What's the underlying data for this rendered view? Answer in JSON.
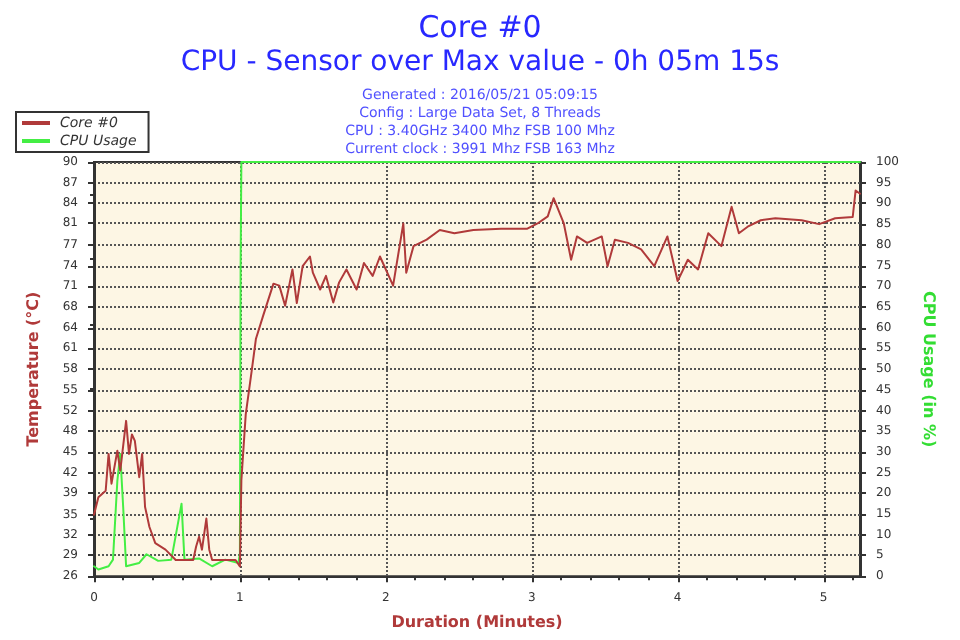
{
  "chart_data": {
    "type": "line",
    "title": "Core #0",
    "subtitle": "CPU - Sensor over Max value - 0h 05m 15s",
    "annotations": [
      "Generated : 2016/05/21 05:09:15",
      "Config : Large Data Set, 8 Threads",
      "CPU : 3.40GHz 3400 Mhz FSB 100 Mhz",
      "Current clock : 3991 Mhz FSB 163 Mhz"
    ],
    "xlabel": "Duration (Minutes)",
    "ylabel": "Temperature (°C)",
    "y2label": "CPU Usage (in %)",
    "xlim": [
      0,
      5.25
    ],
    "xticks": [
      0,
      1,
      2,
      3,
      4,
      5
    ],
    "ylim": [
      26,
      90
    ],
    "yticks": [
      26,
      {
        "value": 29.2,
        "label": "29"
      },
      {
        "value": 32.4,
        "label": "32"
      },
      {
        "value": 35.4,
        "label": "35"
      },
      {
        "value": 38.8,
        "label": "39"
      },
      42,
      {
        "value": 45.2,
        "label": "45"
      },
      {
        "value": 48.4,
        "label": "48"
      },
      {
        "value": 51.6,
        "label": "52"
      },
      {
        "value": 54.8,
        "label": "55"
      },
      58,
      {
        "value": 61.2,
        "label": "61"
      },
      {
        "value": 64.4,
        "label": "64"
      },
      {
        "value": 67.6,
        "label": "68"
      },
      {
        "value": 70.8,
        "label": "71"
      },
      74,
      {
        "value": 77.2,
        "label": "77"
      },
      {
        "value": 80.6,
        "label": "81"
      },
      {
        "value": 83.6,
        "label": "84"
      },
      {
        "value": 86.8,
        "label": "87"
      },
      90
    ],
    "y2lim": [
      0,
      100
    ],
    "y2ticks": [
      0,
      5,
      10,
      15,
      20,
      25,
      30,
      35,
      40,
      45,
      50,
      55,
      60,
      65,
      70,
      75,
      80,
      85,
      90,
      95,
      100
    ],
    "grid": true,
    "legend": "top left",
    "marker": "none",
    "line_style": "solid",
    "series": [
      {
        "name": "Core #0",
        "color": "#b03a3a",
        "x": [
          0,
          0.03,
          0.08,
          0.1,
          0.12,
          0.16,
          0.18,
          0.22,
          0.24,
          0.26,
          0.28,
          0.31,
          0.33,
          0.35,
          0.38,
          0.42,
          0.49,
          0.56,
          0.68,
          0.7,
          0.72,
          0.74,
          0.77,
          0.79,
          0.81,
          0.97,
          1.0,
          1.01,
          1.04,
          1.08,
          1.11,
          1.16,
          1.23,
          1.27,
          1.31,
          1.36,
          1.39,
          1.43,
          1.48,
          1.5,
          1.55,
          1.59,
          1.64,
          1.68,
          1.73,
          1.8,
          1.85,
          1.91,
          1.96,
          2.05,
          2.12,
          2.14,
          2.19,
          2.28,
          2.37,
          2.47,
          2.6,
          2.79,
          2.97,
          3.04,
          3.11,
          3.15,
          3.22,
          3.27,
          3.31,
          3.38,
          3.48,
          3.52,
          3.57,
          3.66,
          3.75,
          3.84,
          3.93,
          4.0,
          4.07,
          4.14,
          4.21,
          4.3,
          4.37,
          4.42,
          4.48,
          4.57,
          4.67,
          4.85,
          4.97,
          5.08,
          5.2,
          5.22,
          5.25
        ],
        "values": [
          35.5,
          38.2,
          39.2,
          44.9,
          40.3,
          45.4,
          42.3,
          50,
          44.9,
          47.9,
          46.9,
          41.3,
          44.9,
          36.7,
          33.6,
          31.1,
          30.1,
          28.5,
          28.5,
          30.6,
          32.1,
          30.1,
          34.9,
          30.1,
          28.5,
          28.5,
          27.5,
          40.8,
          51,
          57.6,
          62.7,
          66.3,
          71.2,
          70.9,
          67.8,
          73.4,
          68.2,
          73.9,
          75.4,
          72.9,
          70.3,
          72.4,
          68.3,
          71.4,
          73.4,
          70.3,
          74.4,
          72.4,
          75.4,
          70.9,
          80.5,
          72.9,
          77,
          78,
          79.5,
          79,
          79.5,
          79.7,
          79.7,
          80.5,
          81.6,
          84.4,
          80.5,
          74.9,
          78.5,
          77.5,
          78.5,
          73.9,
          78,
          77.5,
          76.5,
          73.9,
          78.5,
          71.6,
          74.9,
          73.4,
          79,
          77,
          83.1,
          79,
          80,
          81,
          81.3,
          81,
          80.4,
          81.3,
          81.5,
          85.6,
          85.1
        ]
      },
      {
        "name": "CPU Usage",
        "color": "#44ee44",
        "axis": "y2",
        "x": [
          0,
          0.03,
          0.1,
          0.13,
          0.16,
          0.18,
          0.2,
          0.22,
          0.31,
          0.36,
          0.44,
          0.53,
          0.6,
          0.62,
          0.72,
          0.81,
          0.9,
          0.99,
          1.0,
          1.005,
          1.01,
          5.25
        ],
        "values": [
          2.4,
          1.6,
          2.4,
          4,
          23,
          29.5,
          16.7,
          2.4,
          3.2,
          5.3,
          3.7,
          4,
          17.5,
          4,
          4.3,
          2.4,
          4,
          3.2,
          5.5,
          75.7,
          100,
          100
        ]
      }
    ]
  }
}
